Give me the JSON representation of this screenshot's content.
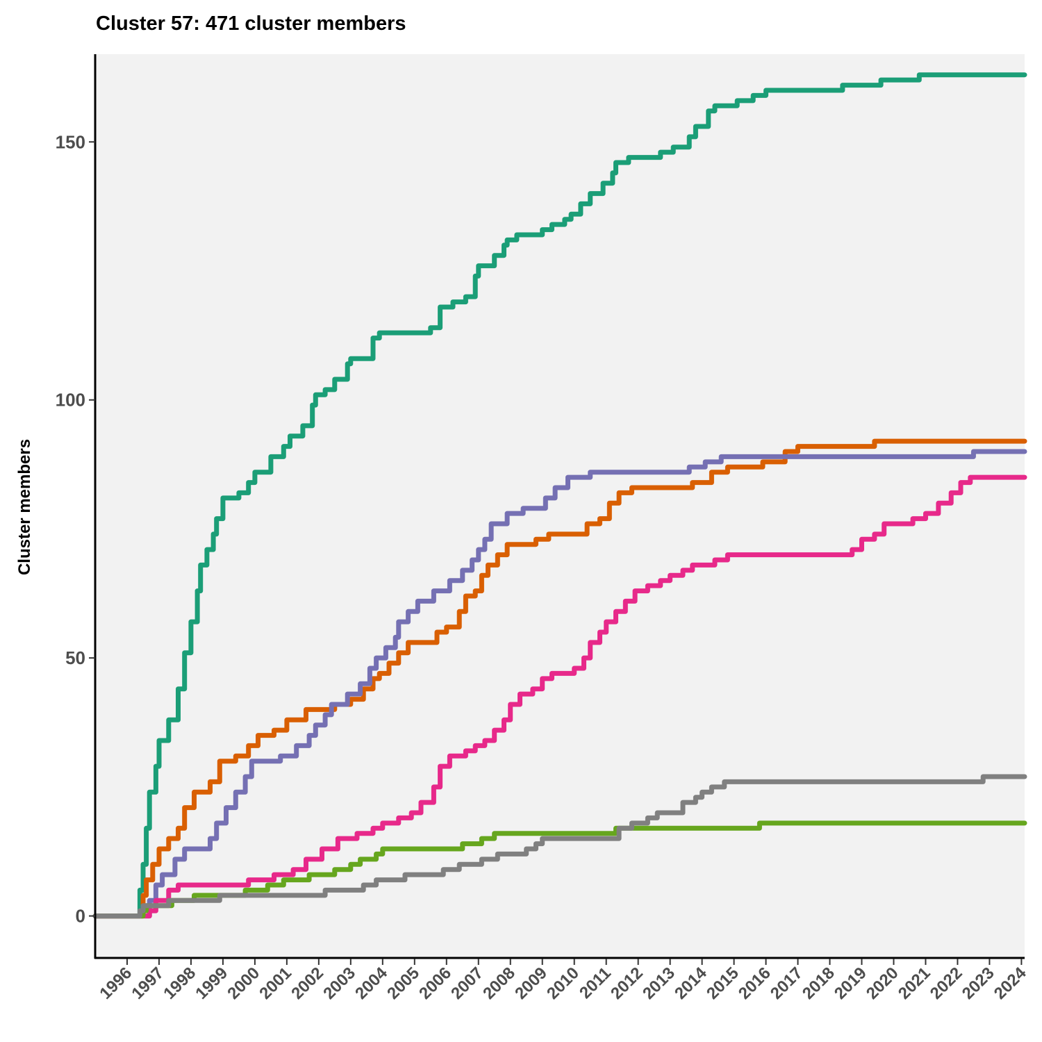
{
  "chart_data": {
    "type": "line",
    "title": "Cluster 57: 471 cluster members",
    "xlabel": "",
    "ylabel": "Cluster members",
    "xlim": [
      1995.0,
      2024.1
    ],
    "ylim": [
      -8,
      167
    ],
    "x_ticks": [
      1996,
      1997,
      1998,
      1999,
      2000,
      2001,
      2002,
      2003,
      2004,
      2005,
      2006,
      2007,
      2008,
      2009,
      2010,
      2011,
      2012,
      2013,
      2014,
      2015,
      2016,
      2017,
      2018,
      2019,
      2020,
      2021,
      2022,
      2023,
      2024
    ],
    "y_ticks": [
      0,
      50,
      100,
      150
    ],
    "grid": false,
    "legend": "none",
    "background": "#f2f2f2",
    "series": [
      {
        "color": "#1b9e77",
        "points": [
          [
            1995.0,
            0
          ],
          [
            1996.3,
            0
          ],
          [
            1996.4,
            5
          ],
          [
            1996.5,
            10
          ],
          [
            1996.6,
            17
          ],
          [
            1996.7,
            24
          ],
          [
            1996.9,
            29
          ],
          [
            1997.0,
            34
          ],
          [
            1997.3,
            38
          ],
          [
            1997.6,
            44
          ],
          [
            1997.8,
            51
          ],
          [
            1998.0,
            57
          ],
          [
            1998.2,
            63
          ],
          [
            1998.3,
            68
          ],
          [
            1998.5,
            71
          ],
          [
            1998.7,
            74
          ],
          [
            1998.8,
            77
          ],
          [
            1999.0,
            81
          ],
          [
            1999.5,
            82
          ],
          [
            1999.8,
            84
          ],
          [
            2000.0,
            86
          ],
          [
            2000.5,
            89
          ],
          [
            2000.9,
            91
          ],
          [
            2001.1,
            93
          ],
          [
            2001.5,
            95
          ],
          [
            2001.8,
            99
          ],
          [
            2001.9,
            101
          ],
          [
            2002.2,
            102
          ],
          [
            2002.5,
            104
          ],
          [
            2002.9,
            107
          ],
          [
            2003.0,
            108
          ],
          [
            2003.7,
            112
          ],
          [
            2003.9,
            113
          ],
          [
            2005.5,
            114
          ],
          [
            2005.8,
            118
          ],
          [
            2006.2,
            119
          ],
          [
            2006.6,
            120
          ],
          [
            2006.9,
            124
          ],
          [
            2007.0,
            126
          ],
          [
            2007.5,
            128
          ],
          [
            2007.8,
            130
          ],
          [
            2007.9,
            131
          ],
          [
            2008.2,
            132
          ],
          [
            2009.0,
            133
          ],
          [
            2009.3,
            134
          ],
          [
            2009.7,
            135
          ],
          [
            2009.9,
            136
          ],
          [
            2010.2,
            138
          ],
          [
            2010.5,
            140
          ],
          [
            2010.9,
            142
          ],
          [
            2011.2,
            144
          ],
          [
            2011.3,
            146
          ],
          [
            2011.7,
            147
          ],
          [
            2012.7,
            148
          ],
          [
            2013.1,
            149
          ],
          [
            2013.6,
            151
          ],
          [
            2013.8,
            153
          ],
          [
            2014.2,
            156
          ],
          [
            2014.4,
            157
          ],
          [
            2015.1,
            158
          ],
          [
            2015.6,
            159
          ],
          [
            2016.0,
            160
          ],
          [
            2018.4,
            161
          ],
          [
            2019.6,
            162
          ],
          [
            2020.8,
            163
          ],
          [
            2024.1,
            163
          ]
        ]
      },
      {
        "color": "#d95f02",
        "points": [
          [
            1995.0,
            0
          ],
          [
            1996.4,
            0
          ],
          [
            1996.5,
            4
          ],
          [
            1996.6,
            7
          ],
          [
            1996.8,
            10
          ],
          [
            1997.0,
            13
          ],
          [
            1997.3,
            15
          ],
          [
            1997.6,
            17
          ],
          [
            1997.8,
            21
          ],
          [
            1998.1,
            24
          ],
          [
            1998.6,
            26
          ],
          [
            1998.9,
            30
          ],
          [
            1999.4,
            31
          ],
          [
            1999.8,
            33
          ],
          [
            2000.1,
            35
          ],
          [
            2000.6,
            36
          ],
          [
            2001.0,
            38
          ],
          [
            2001.6,
            40
          ],
          [
            2002.5,
            41
          ],
          [
            2003.0,
            42
          ],
          [
            2003.4,
            44
          ],
          [
            2003.7,
            46
          ],
          [
            2003.9,
            47
          ],
          [
            2004.2,
            49
          ],
          [
            2004.5,
            51
          ],
          [
            2004.8,
            53
          ],
          [
            2005.7,
            55
          ],
          [
            2006.0,
            56
          ],
          [
            2006.4,
            59
          ],
          [
            2006.6,
            62
          ],
          [
            2006.9,
            63
          ],
          [
            2007.1,
            66
          ],
          [
            2007.3,
            68
          ],
          [
            2007.6,
            70
          ],
          [
            2007.9,
            72
          ],
          [
            2008.8,
            73
          ],
          [
            2009.2,
            74
          ],
          [
            2010.4,
            76
          ],
          [
            2010.8,
            77
          ],
          [
            2011.1,
            80
          ],
          [
            2011.4,
            82
          ],
          [
            2011.8,
            83
          ],
          [
            2013.7,
            84
          ],
          [
            2014.3,
            86
          ],
          [
            2014.8,
            87
          ],
          [
            2015.9,
            88
          ],
          [
            2016.6,
            90
          ],
          [
            2017.0,
            91
          ],
          [
            2019.4,
            92
          ],
          [
            2024.1,
            92
          ]
        ]
      },
      {
        "color": "#7570b3",
        "points": [
          [
            1995.0,
            0
          ],
          [
            1996.6,
            0
          ],
          [
            1996.7,
            3
          ],
          [
            1996.9,
            6
          ],
          [
            1997.1,
            8
          ],
          [
            1997.5,
            11
          ],
          [
            1997.8,
            13
          ],
          [
            1998.6,
            15
          ],
          [
            1998.8,
            18
          ],
          [
            1999.1,
            21
          ],
          [
            1999.4,
            24
          ],
          [
            1999.7,
            27
          ],
          [
            1999.9,
            30
          ],
          [
            2000.8,
            31
          ],
          [
            2001.3,
            33
          ],
          [
            2001.7,
            35
          ],
          [
            2001.9,
            37
          ],
          [
            2002.2,
            39
          ],
          [
            2002.4,
            41
          ],
          [
            2002.9,
            43
          ],
          [
            2003.3,
            45
          ],
          [
            2003.6,
            48
          ],
          [
            2003.8,
            50
          ],
          [
            2004.1,
            52
          ],
          [
            2004.4,
            54
          ],
          [
            2004.5,
            57
          ],
          [
            2004.8,
            59
          ],
          [
            2005.1,
            61
          ],
          [
            2005.6,
            63
          ],
          [
            2006.1,
            65
          ],
          [
            2006.5,
            67
          ],
          [
            2006.8,
            69
          ],
          [
            2007.0,
            71
          ],
          [
            2007.2,
            73
          ],
          [
            2007.4,
            76
          ],
          [
            2007.9,
            78
          ],
          [
            2008.4,
            79
          ],
          [
            2009.1,
            81
          ],
          [
            2009.4,
            83
          ],
          [
            2009.8,
            85
          ],
          [
            2010.5,
            86
          ],
          [
            2013.6,
            87
          ],
          [
            2014.1,
            88
          ],
          [
            2014.6,
            89
          ],
          [
            2016.4,
            89
          ],
          [
            2022.5,
            90
          ],
          [
            2024.1,
            90
          ]
        ]
      },
      {
        "color": "#e7298a",
        "points": [
          [
            1995.0,
            0
          ],
          [
            1996.5,
            0
          ],
          [
            1996.7,
            1
          ],
          [
            1996.9,
            3
          ],
          [
            1997.3,
            5
          ],
          [
            1997.6,
            6
          ],
          [
            1998.4,
            6
          ],
          [
            1999.8,
            7
          ],
          [
            2000.6,
            8
          ],
          [
            2001.2,
            9
          ],
          [
            2001.6,
            11
          ],
          [
            2002.1,
            13
          ],
          [
            2002.6,
            15
          ],
          [
            2003.2,
            16
          ],
          [
            2003.7,
            17
          ],
          [
            2004.0,
            18
          ],
          [
            2004.5,
            19
          ],
          [
            2004.9,
            20
          ],
          [
            2005.2,
            22
          ],
          [
            2005.6,
            25
          ],
          [
            2005.8,
            29
          ],
          [
            2006.1,
            31
          ],
          [
            2006.6,
            32
          ],
          [
            2006.9,
            33
          ],
          [
            2007.2,
            34
          ],
          [
            2007.5,
            36
          ],
          [
            2007.8,
            38
          ],
          [
            2008.0,
            41
          ],
          [
            2008.3,
            43
          ],
          [
            2008.7,
            44
          ],
          [
            2009.0,
            46
          ],
          [
            2009.3,
            47
          ],
          [
            2010.0,
            48
          ],
          [
            2010.3,
            50
          ],
          [
            2010.5,
            53
          ],
          [
            2010.8,
            55
          ],
          [
            2011.0,
            57
          ],
          [
            2011.3,
            59
          ],
          [
            2011.6,
            61
          ],
          [
            2011.9,
            63
          ],
          [
            2012.3,
            64
          ],
          [
            2012.7,
            65
          ],
          [
            2013.0,
            66
          ],
          [
            2013.4,
            67
          ],
          [
            2013.7,
            68
          ],
          [
            2014.4,
            69
          ],
          [
            2014.8,
            70
          ],
          [
            2015.7,
            70
          ],
          [
            2018.7,
            71
          ],
          [
            2019.0,
            73
          ],
          [
            2019.4,
            74
          ],
          [
            2019.7,
            76
          ],
          [
            2020.6,
            77
          ],
          [
            2021.0,
            78
          ],
          [
            2021.4,
            80
          ],
          [
            2021.8,
            82
          ],
          [
            2022.1,
            84
          ],
          [
            2022.4,
            85
          ],
          [
            2024.1,
            85
          ]
        ]
      },
      {
        "color": "#66a61e",
        "points": [
          [
            1995.0,
            0
          ],
          [
            1996.4,
            0
          ],
          [
            1996.5,
            1
          ],
          [
            1996.6,
            2
          ],
          [
            1997.4,
            3
          ],
          [
            1998.1,
            4
          ],
          [
            1998.8,
            4
          ],
          [
            1999.7,
            5
          ],
          [
            2000.4,
            6
          ],
          [
            2000.9,
            7
          ],
          [
            2001.7,
            8
          ],
          [
            2002.5,
            9
          ],
          [
            2003.0,
            10
          ],
          [
            2003.3,
            11
          ],
          [
            2003.8,
            12
          ],
          [
            2004.0,
            13
          ],
          [
            2006.5,
            14
          ],
          [
            2007.1,
            15
          ],
          [
            2007.5,
            16
          ],
          [
            2008.5,
            16
          ],
          [
            2011.3,
            17
          ],
          [
            2015.8,
            18
          ],
          [
            2024.1,
            18
          ]
        ]
      },
      {
        "color": "#808080",
        "points": [
          [
            1995.0,
            0
          ],
          [
            1996.3,
            0
          ],
          [
            1996.4,
            1
          ],
          [
            1996.5,
            2
          ],
          [
            1997.3,
            3
          ],
          [
            1998.5,
            3
          ],
          [
            1998.9,
            4
          ],
          [
            2000.0,
            4
          ],
          [
            2002.2,
            5
          ],
          [
            2003.4,
            6
          ],
          [
            2003.8,
            7
          ],
          [
            2004.7,
            8
          ],
          [
            2005.9,
            9
          ],
          [
            2006.4,
            10
          ],
          [
            2007.1,
            11
          ],
          [
            2007.6,
            12
          ],
          [
            2008.5,
            13
          ],
          [
            2008.8,
            14
          ],
          [
            2009.0,
            15
          ],
          [
            2010.0,
            15
          ],
          [
            2011.4,
            17
          ],
          [
            2011.8,
            18
          ],
          [
            2012.3,
            19
          ],
          [
            2012.6,
            20
          ],
          [
            2013.4,
            22
          ],
          [
            2013.8,
            23
          ],
          [
            2014.0,
            24
          ],
          [
            2014.3,
            25
          ],
          [
            2014.7,
            26
          ],
          [
            2018.0,
            26
          ],
          [
            2022.8,
            27
          ],
          [
            2024.1,
            27
          ]
        ]
      }
    ]
  }
}
